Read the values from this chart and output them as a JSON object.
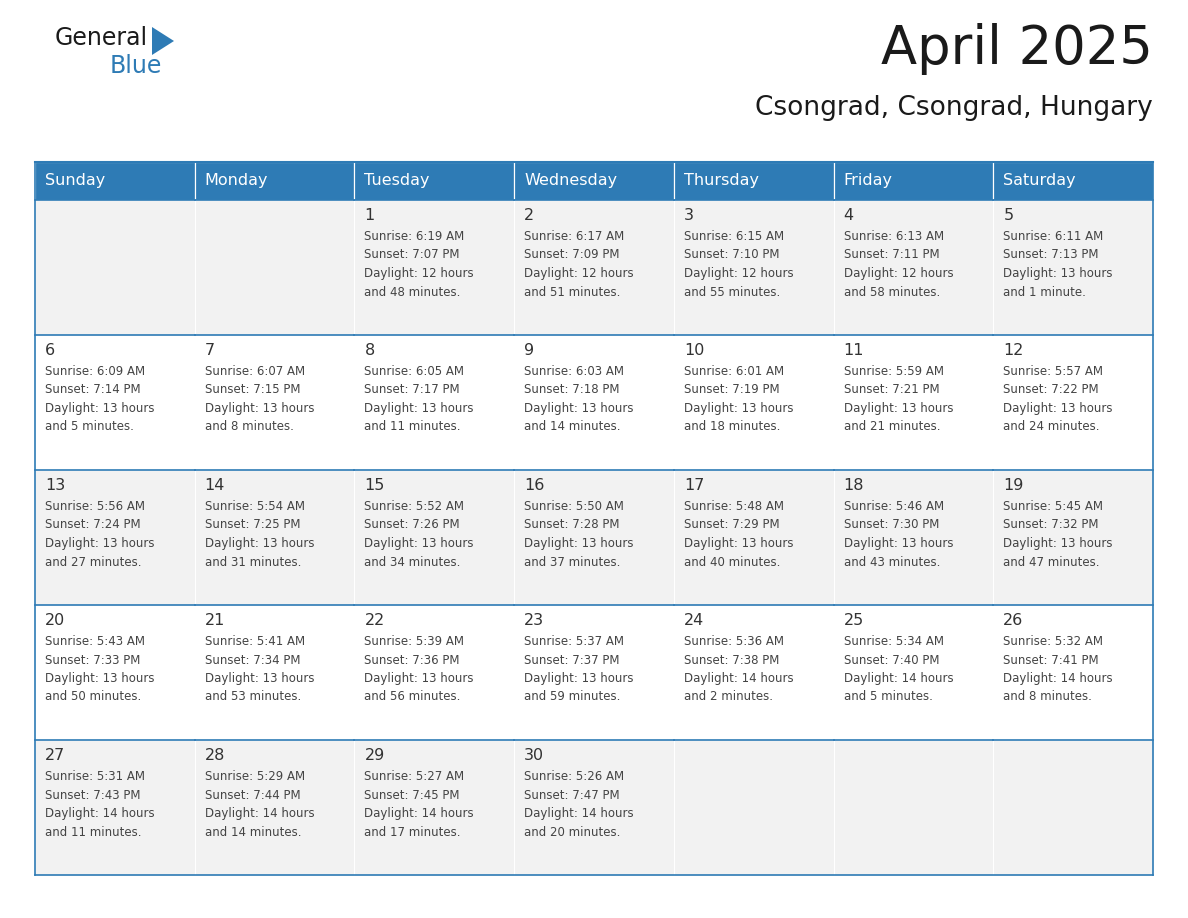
{
  "title": "April 2025",
  "subtitle": "Csongrad, Csongrad, Hungary",
  "header_bg": "#2E7BB5",
  "header_text_color": "#FFFFFF",
  "cell_bg_odd": "#F2F2F2",
  "cell_bg_even": "#FFFFFF",
  "border_color": "#2E7BB5",
  "text_color": "#444444",
  "days_of_week": [
    "Sunday",
    "Monday",
    "Tuesday",
    "Wednesday",
    "Thursday",
    "Friday",
    "Saturday"
  ],
  "weeks": [
    [
      {
        "day": "",
        "sunrise": "",
        "sunset": "",
        "daylight": ""
      },
      {
        "day": "",
        "sunrise": "",
        "sunset": "",
        "daylight": ""
      },
      {
        "day": "1",
        "sunrise": "Sunrise: 6:19 AM",
        "sunset": "Sunset: 7:07 PM",
        "daylight": "Daylight: 12 hours\nand 48 minutes."
      },
      {
        "day": "2",
        "sunrise": "Sunrise: 6:17 AM",
        "sunset": "Sunset: 7:09 PM",
        "daylight": "Daylight: 12 hours\nand 51 minutes."
      },
      {
        "day": "3",
        "sunrise": "Sunrise: 6:15 AM",
        "sunset": "Sunset: 7:10 PM",
        "daylight": "Daylight: 12 hours\nand 55 minutes."
      },
      {
        "day": "4",
        "sunrise": "Sunrise: 6:13 AM",
        "sunset": "Sunset: 7:11 PM",
        "daylight": "Daylight: 12 hours\nand 58 minutes."
      },
      {
        "day": "5",
        "sunrise": "Sunrise: 6:11 AM",
        "sunset": "Sunset: 7:13 PM",
        "daylight": "Daylight: 13 hours\nand 1 minute."
      }
    ],
    [
      {
        "day": "6",
        "sunrise": "Sunrise: 6:09 AM",
        "sunset": "Sunset: 7:14 PM",
        "daylight": "Daylight: 13 hours\nand 5 minutes."
      },
      {
        "day": "7",
        "sunrise": "Sunrise: 6:07 AM",
        "sunset": "Sunset: 7:15 PM",
        "daylight": "Daylight: 13 hours\nand 8 minutes."
      },
      {
        "day": "8",
        "sunrise": "Sunrise: 6:05 AM",
        "sunset": "Sunset: 7:17 PM",
        "daylight": "Daylight: 13 hours\nand 11 minutes."
      },
      {
        "day": "9",
        "sunrise": "Sunrise: 6:03 AM",
        "sunset": "Sunset: 7:18 PM",
        "daylight": "Daylight: 13 hours\nand 14 minutes."
      },
      {
        "day": "10",
        "sunrise": "Sunrise: 6:01 AM",
        "sunset": "Sunset: 7:19 PM",
        "daylight": "Daylight: 13 hours\nand 18 minutes."
      },
      {
        "day": "11",
        "sunrise": "Sunrise: 5:59 AM",
        "sunset": "Sunset: 7:21 PM",
        "daylight": "Daylight: 13 hours\nand 21 minutes."
      },
      {
        "day": "12",
        "sunrise": "Sunrise: 5:57 AM",
        "sunset": "Sunset: 7:22 PM",
        "daylight": "Daylight: 13 hours\nand 24 minutes."
      }
    ],
    [
      {
        "day": "13",
        "sunrise": "Sunrise: 5:56 AM",
        "sunset": "Sunset: 7:24 PM",
        "daylight": "Daylight: 13 hours\nand 27 minutes."
      },
      {
        "day": "14",
        "sunrise": "Sunrise: 5:54 AM",
        "sunset": "Sunset: 7:25 PM",
        "daylight": "Daylight: 13 hours\nand 31 minutes."
      },
      {
        "day": "15",
        "sunrise": "Sunrise: 5:52 AM",
        "sunset": "Sunset: 7:26 PM",
        "daylight": "Daylight: 13 hours\nand 34 minutes."
      },
      {
        "day": "16",
        "sunrise": "Sunrise: 5:50 AM",
        "sunset": "Sunset: 7:28 PM",
        "daylight": "Daylight: 13 hours\nand 37 minutes."
      },
      {
        "day": "17",
        "sunrise": "Sunrise: 5:48 AM",
        "sunset": "Sunset: 7:29 PM",
        "daylight": "Daylight: 13 hours\nand 40 minutes."
      },
      {
        "day": "18",
        "sunrise": "Sunrise: 5:46 AM",
        "sunset": "Sunset: 7:30 PM",
        "daylight": "Daylight: 13 hours\nand 43 minutes."
      },
      {
        "day": "19",
        "sunrise": "Sunrise: 5:45 AM",
        "sunset": "Sunset: 7:32 PM",
        "daylight": "Daylight: 13 hours\nand 47 minutes."
      }
    ],
    [
      {
        "day": "20",
        "sunrise": "Sunrise: 5:43 AM",
        "sunset": "Sunset: 7:33 PM",
        "daylight": "Daylight: 13 hours\nand 50 minutes."
      },
      {
        "day": "21",
        "sunrise": "Sunrise: 5:41 AM",
        "sunset": "Sunset: 7:34 PM",
        "daylight": "Daylight: 13 hours\nand 53 minutes."
      },
      {
        "day": "22",
        "sunrise": "Sunrise: 5:39 AM",
        "sunset": "Sunset: 7:36 PM",
        "daylight": "Daylight: 13 hours\nand 56 minutes."
      },
      {
        "day": "23",
        "sunrise": "Sunrise: 5:37 AM",
        "sunset": "Sunset: 7:37 PM",
        "daylight": "Daylight: 13 hours\nand 59 minutes."
      },
      {
        "day": "24",
        "sunrise": "Sunrise: 5:36 AM",
        "sunset": "Sunset: 7:38 PM",
        "daylight": "Daylight: 14 hours\nand 2 minutes."
      },
      {
        "day": "25",
        "sunrise": "Sunrise: 5:34 AM",
        "sunset": "Sunset: 7:40 PM",
        "daylight": "Daylight: 14 hours\nand 5 minutes."
      },
      {
        "day": "26",
        "sunrise": "Sunrise: 5:32 AM",
        "sunset": "Sunset: 7:41 PM",
        "daylight": "Daylight: 14 hours\nand 8 minutes."
      }
    ],
    [
      {
        "day": "27",
        "sunrise": "Sunrise: 5:31 AM",
        "sunset": "Sunset: 7:43 PM",
        "daylight": "Daylight: 14 hours\nand 11 minutes."
      },
      {
        "day": "28",
        "sunrise": "Sunrise: 5:29 AM",
        "sunset": "Sunset: 7:44 PM",
        "daylight": "Daylight: 14 hours\nand 14 minutes."
      },
      {
        "day": "29",
        "sunrise": "Sunrise: 5:27 AM",
        "sunset": "Sunset: 7:45 PM",
        "daylight": "Daylight: 14 hours\nand 17 minutes."
      },
      {
        "day": "30",
        "sunrise": "Sunrise: 5:26 AM",
        "sunset": "Sunset: 7:47 PM",
        "daylight": "Daylight: 14 hours\nand 20 minutes."
      },
      {
        "day": "",
        "sunrise": "",
        "sunset": "",
        "daylight": ""
      },
      {
        "day": "",
        "sunrise": "",
        "sunset": "",
        "daylight": ""
      },
      {
        "day": "",
        "sunrise": "",
        "sunset": "",
        "daylight": ""
      }
    ]
  ]
}
